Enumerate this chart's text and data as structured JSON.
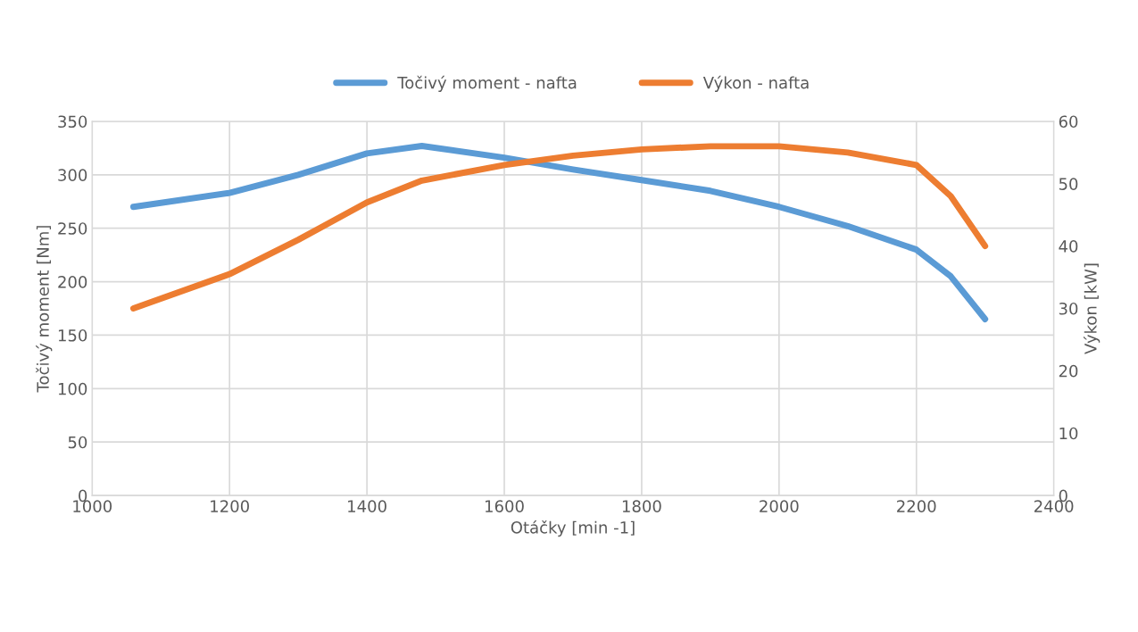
{
  "chart_data": {
    "type": "line",
    "xlabel": "Otáčky [min -1]",
    "ylabel": "Točivý moment [Nm]",
    "y2label": "Výkon [kW]",
    "xlim": [
      1000,
      2400
    ],
    "xticks": [
      1000,
      1200,
      1400,
      1600,
      1800,
      2000,
      2200,
      2400
    ],
    "ylim": [
      0,
      350
    ],
    "yticks": [
      0,
      50,
      100,
      150,
      200,
      250,
      300,
      350
    ],
    "y2lim": [
      0,
      60
    ],
    "y2ticks": [
      0,
      10,
      20,
      30,
      40,
      50,
      60
    ],
    "grid": true,
    "legend": "top",
    "marker": "none",
    "line_style": "solid",
    "x": [
      1060,
      1200,
      1300,
      1400,
      1480,
      1600,
      1700,
      1800,
      1900,
      2000,
      2100,
      2200,
      2250,
      2300
    ],
    "series": [
      {
        "name": "Točivý moment - nafta",
        "color": "#5b9bd5",
        "values": [
          270,
          283,
          300,
          320,
          327,
          316,
          305,
          295,
          285,
          270,
          252,
          230,
          205,
          165
        ]
      },
      {
        "name": "Výkon - nafta",
        "color": "#ed7d31",
        "axis": "y2",
        "values": [
          30,
          35.5,
          41,
          47,
          50.5,
          53,
          54.5,
          55.5,
          56,
          56,
          55,
          53,
          48,
          40
        ]
      }
    ]
  }
}
